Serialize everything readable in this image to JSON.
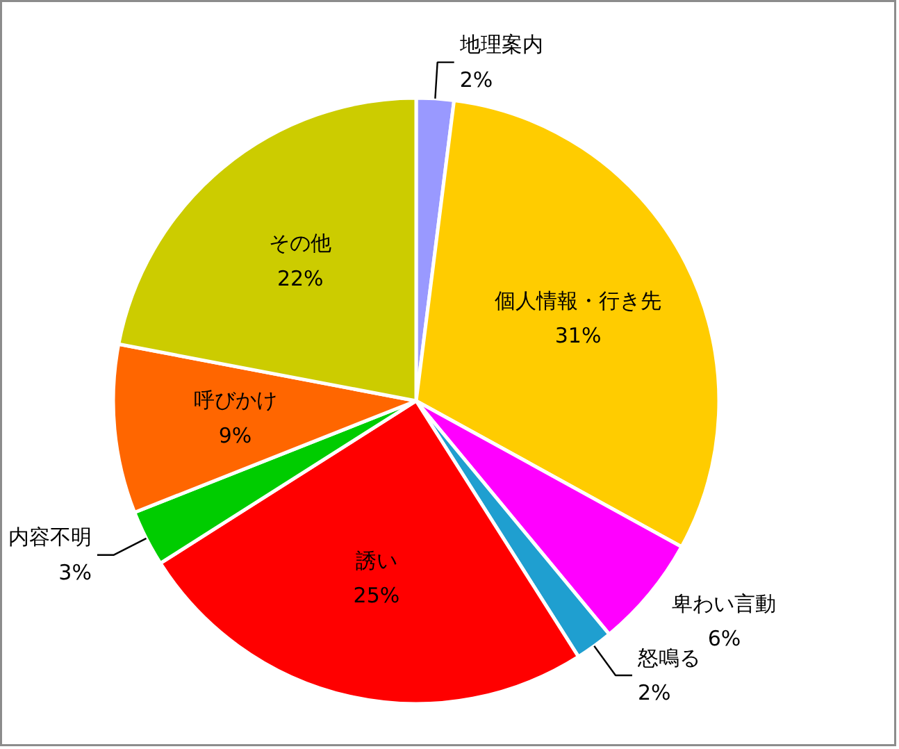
{
  "chart_data": {
    "type": "pie",
    "categories": [
      "地理案内",
      "個人情報・行き先",
      "卑わい言動",
      "怒鳴る",
      "誘い",
      "内容不明",
      "呼びかけ",
      "その他"
    ],
    "values": [
      2,
      31,
      6,
      2,
      25,
      3,
      9,
      22
    ],
    "value_labels": [
      "2%",
      "31%",
      "6%",
      "2%",
      "25%",
      "3%",
      "9%",
      "22%"
    ],
    "colors": [
      "#9999ff",
      "#ffcc00",
      "#ff00ff",
      "#1f9fd0",
      "#ff0000",
      "#00cc00",
      "#ff6600",
      "#cccc00"
    ],
    "legend": false
  }
}
